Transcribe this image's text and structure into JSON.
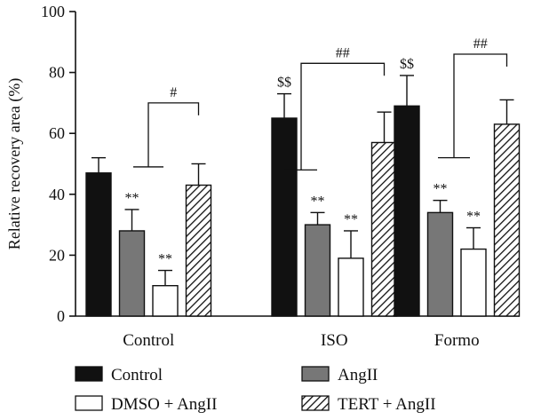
{
  "chart_data": {
    "type": "bar",
    "ylabel": "Relative recovery area (%)",
    "ylim": [
      0,
      100
    ],
    "yticks": [
      0,
      20,
      40,
      60,
      80,
      100
    ],
    "categories": [
      "Control",
      "ISO",
      "Formo"
    ],
    "series": [
      {
        "name": "Control",
        "pattern": "black",
        "values": [
          47,
          65,
          69
        ],
        "errors": [
          5,
          8,
          10
        ],
        "labels": [
          "",
          "$$",
          "$$"
        ]
      },
      {
        "name": "AngII",
        "pattern": "gray",
        "values": [
          28,
          30,
          34
        ],
        "errors": [
          7,
          4,
          4
        ],
        "labels": [
          "**",
          "**",
          "**"
        ]
      },
      {
        "name": "DMSO + AngII",
        "pattern": "white",
        "values": [
          10,
          19,
          22
        ],
        "errors": [
          5,
          9,
          7
        ],
        "labels": [
          "**",
          "**",
          "**"
        ]
      },
      {
        "name": "TERT + AngII",
        "pattern": "hatch",
        "values": [
          43,
          57,
          63
        ],
        "errors": [
          7,
          10,
          8
        ],
        "labels": [
          "",
          "",
          ""
        ]
      }
    ],
    "brackets": [
      {
        "category": 0,
        "label": "#"
      },
      {
        "category": 1,
        "label": "##"
      },
      {
        "category": 2,
        "label": "##"
      }
    ],
    "legend_position": "bottom",
    "colors": {
      "black": "#111111",
      "gray": "#777777",
      "white": "#ffffff",
      "stroke": "#111111"
    }
  }
}
